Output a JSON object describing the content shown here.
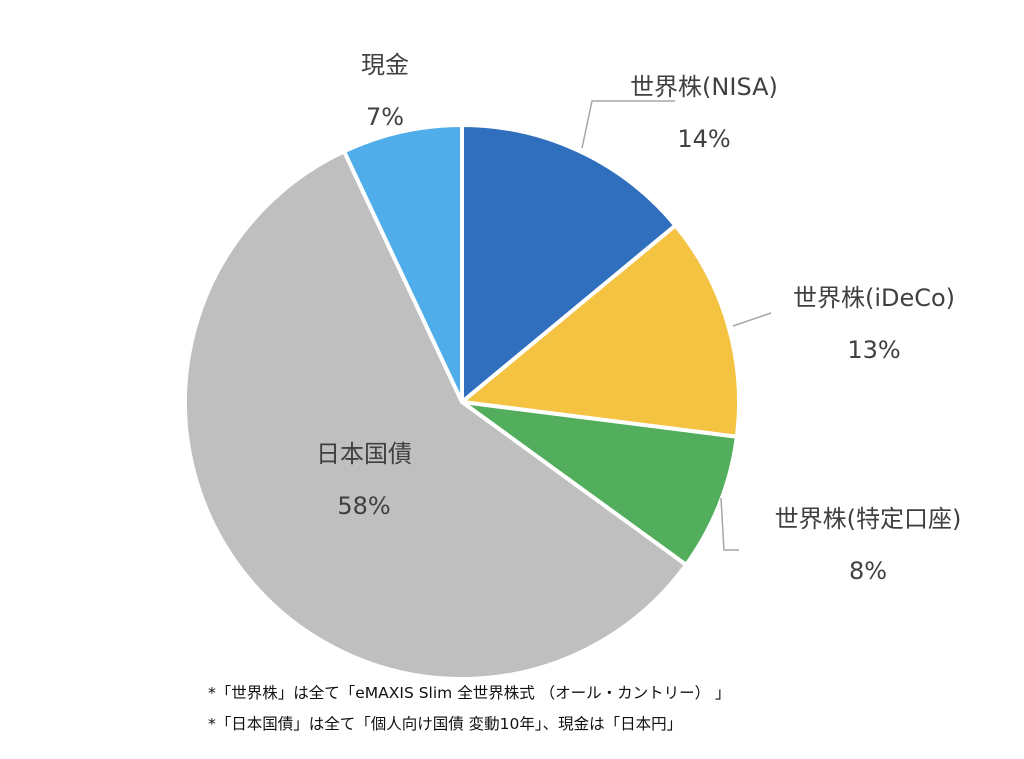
{
  "chart_data": {
    "type": "pie",
    "title": "",
    "slices": [
      {
        "label": "世界株(NISA)",
        "pct_label": "14%",
        "value": 14,
        "color": "#2f6fbd"
      },
      {
        "label": "世界株(iDeCo)",
        "pct_label": "13%",
        "value": 13,
        "color": "#f5c342"
      },
      {
        "label": "世界株(特定口座)",
        "pct_label": "8%",
        "value": 8,
        "color": "#52ae5c"
      },
      {
        "label": "日本国債",
        "pct_label": "58%",
        "value": 58,
        "color": "#bfbfbf"
      },
      {
        "label": "現金",
        "pct_label": "7%",
        "value": 7,
        "color": "#4fadea"
      }
    ],
    "legend": "none"
  },
  "notes": [
    "*「世界株」は全て「eMAXIS Slim 全世界株式 （オール・カントリー） 」",
    "*「日本国債」は全て「個人向け国債 変動10年」、現金は「日本円」"
  ]
}
